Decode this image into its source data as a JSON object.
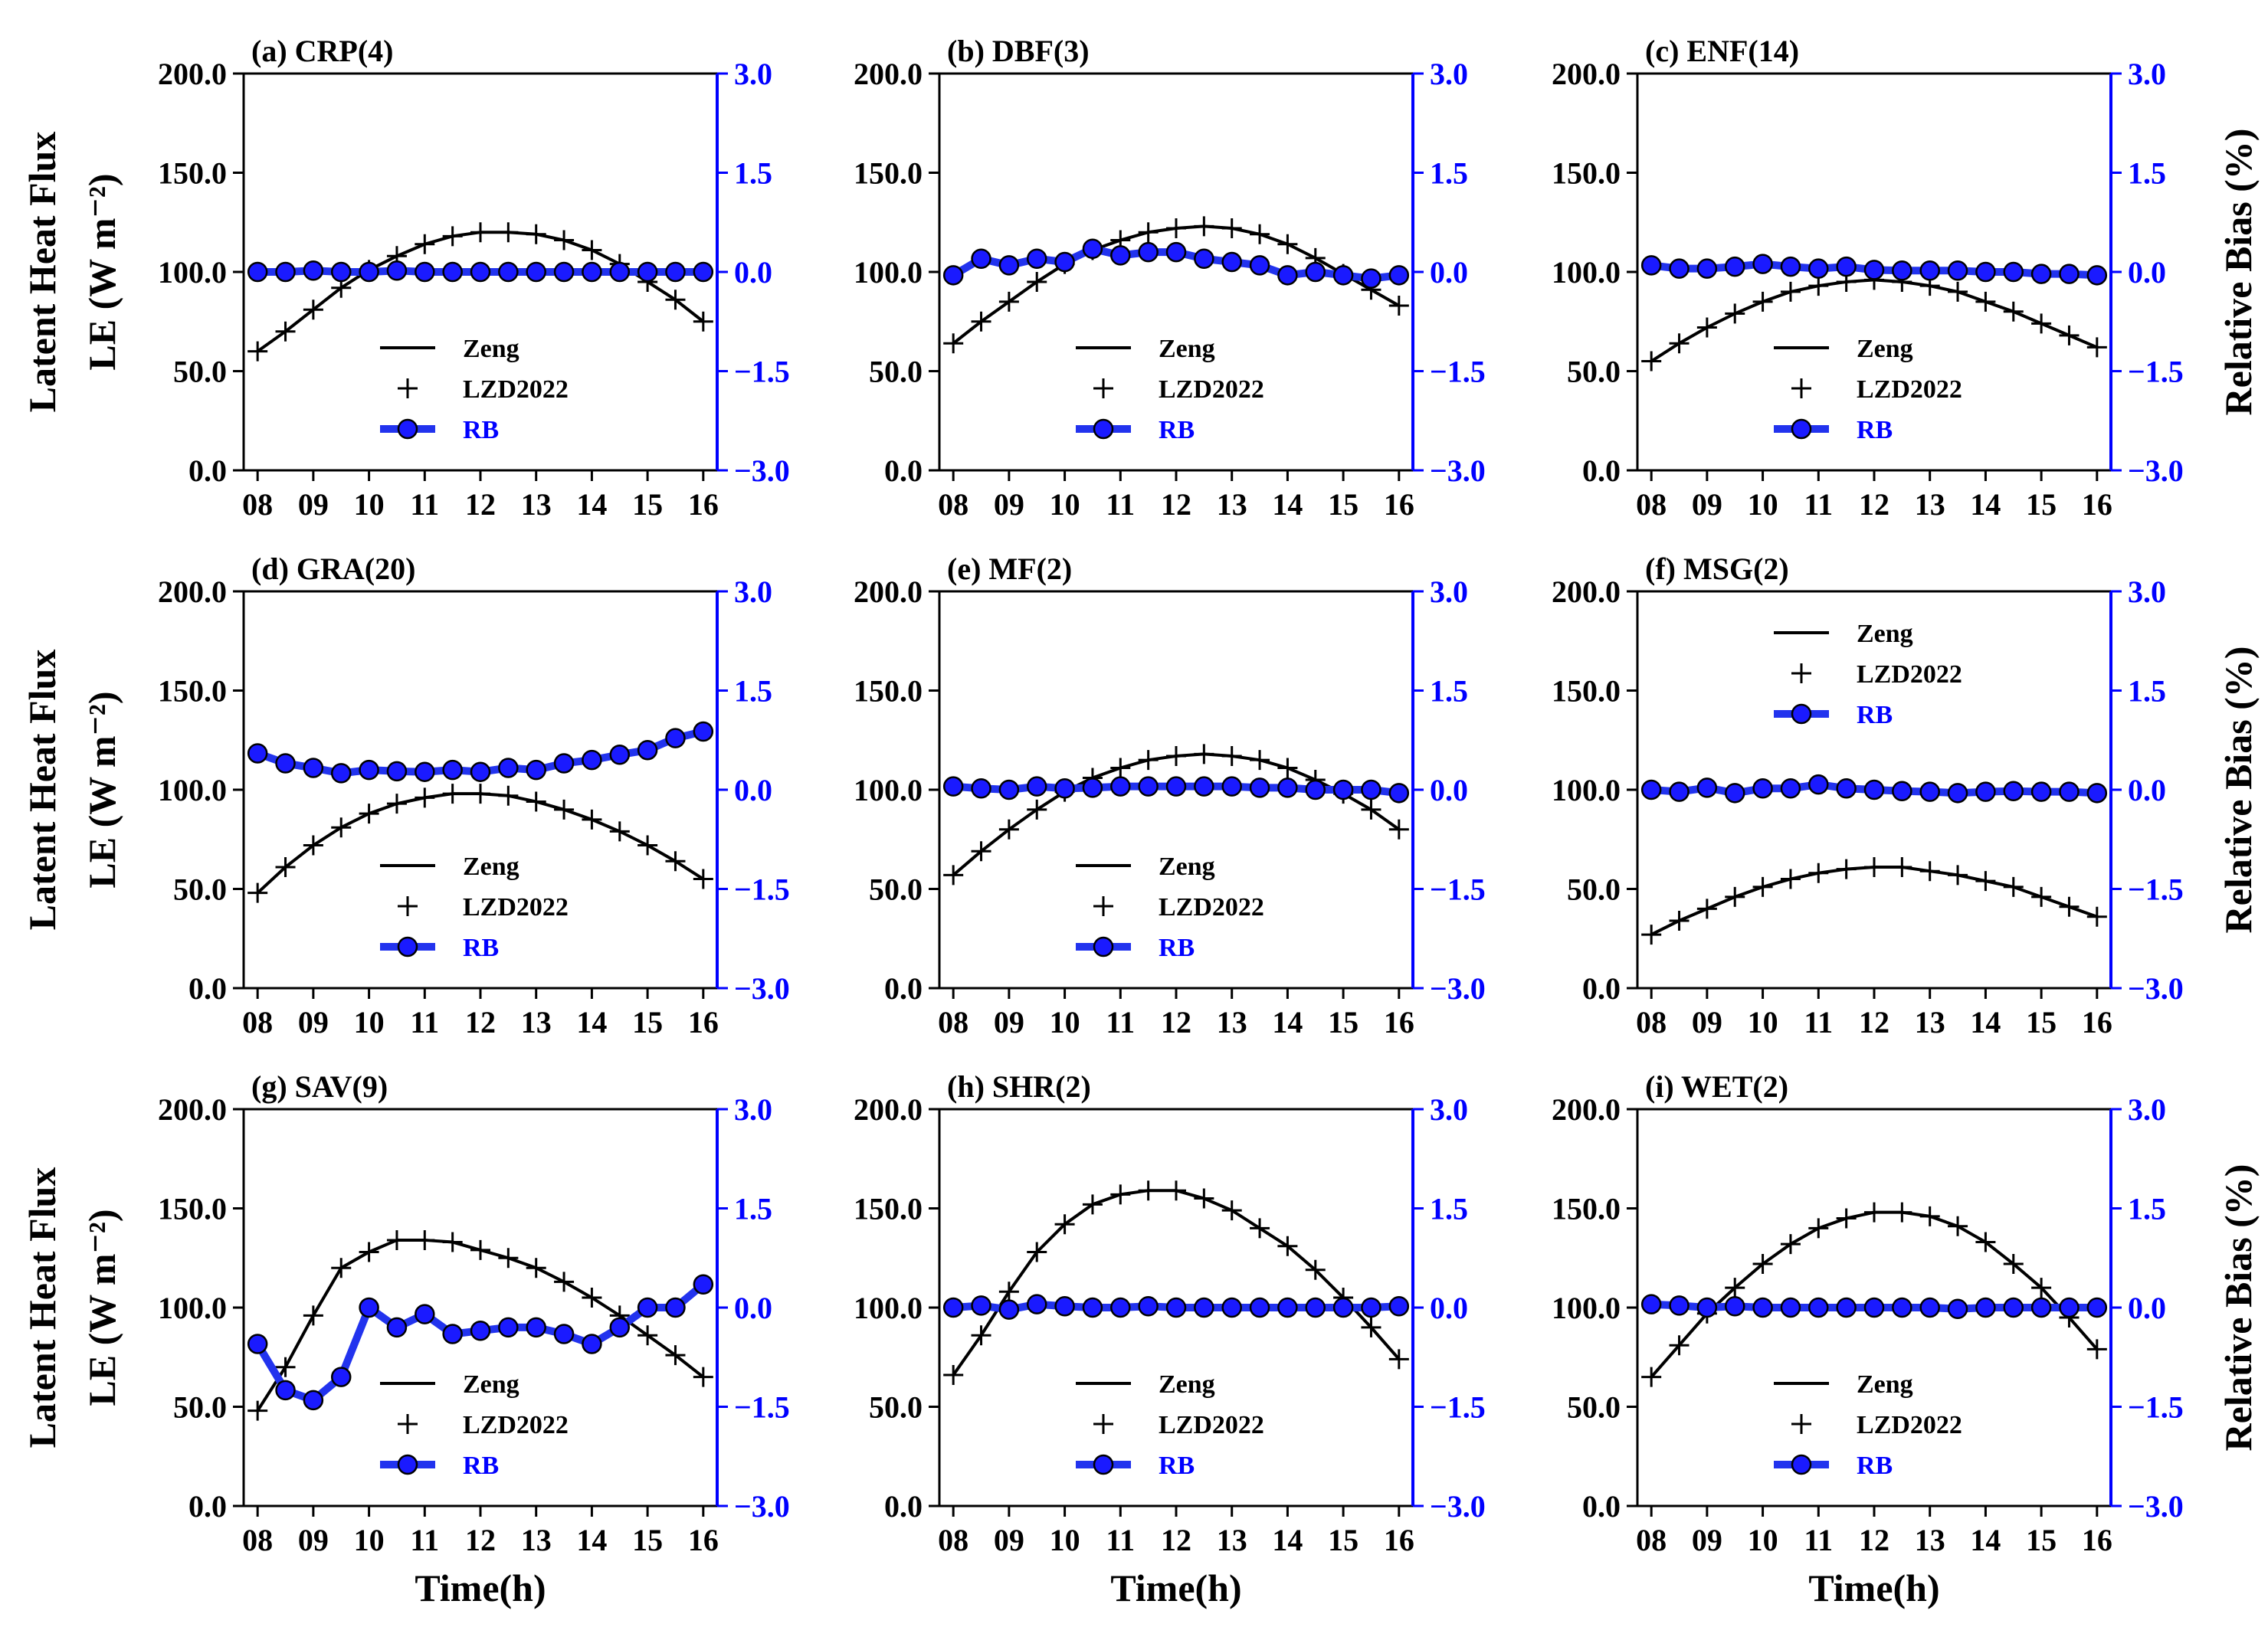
{
  "figure": {
    "xlabel": "Time(h)",
    "left_ylabel_line1": "Latent Heat Flux",
    "left_ylabel_line2": "LE (W m⁻²)",
    "right_ylabel": "Relative Bias (%)",
    "x_ticks": [
      "08",
      "09",
      "10",
      "11",
      "12",
      "13",
      "14",
      "15",
      "16"
    ],
    "y_ticks": [
      "0.0",
      "50.0",
      "100.0",
      "150.0",
      "200.0"
    ],
    "y2_ticks": [
      "−3.0",
      "−1.5",
      "0.0",
      "1.5",
      "3.0"
    ],
    "colors": {
      "line": "#000000",
      "rb": "#2233ee",
      "rb_marker": "#1a1aff",
      "right_axis": "#0000ff"
    }
  },
  "chart_data": [
    {
      "type": "line",
      "title": "(a) CRP(4)",
      "x": [
        8.0,
        8.5,
        9.0,
        9.5,
        10.0,
        10.5,
        11.0,
        11.5,
        12.0,
        12.5,
        13.0,
        13.5,
        14.0,
        14.5,
        15.0,
        15.5,
        16.0
      ],
      "xlim": [
        7.75,
        16.25
      ],
      "ylim": [
        0,
        200
      ],
      "y2lim": [
        -3,
        3
      ],
      "legend": {
        "position": "lower-center",
        "entries": [
          "Zeng",
          "LZD2022",
          "RB"
        ]
      },
      "series": [
        {
          "name": "Zeng",
          "axis": "left",
          "marker": "none",
          "values": [
            60,
            70,
            81,
            92,
            101,
            108,
            114,
            118,
            120,
            120,
            119,
            116,
            111,
            104,
            95,
            86,
            75
          ]
        },
        {
          "name": "LZD2022",
          "axis": "left",
          "marker": "plus",
          "values": [
            60,
            70,
            81,
            92,
            101,
            108,
            114,
            118,
            120,
            120,
            119,
            116,
            111,
            104,
            95,
            86,
            75
          ]
        },
        {
          "name": "RB",
          "axis": "right",
          "marker": "circle",
          "values": [
            0.0,
            0.0,
            0.02,
            0.0,
            0.0,
            0.02,
            0.0,
            0.0,
            0.0,
            0.0,
            0.0,
            0.0,
            0.0,
            0.0,
            0.0,
            0.0,
            0.0
          ]
        }
      ]
    },
    {
      "type": "line",
      "title": "(b) DBF(3)",
      "x": [
        8.0,
        8.5,
        9.0,
        9.5,
        10.0,
        10.5,
        11.0,
        11.5,
        12.0,
        12.5,
        13.0,
        13.5,
        14.0,
        14.5,
        15.0,
        15.5,
        16.0
      ],
      "xlim": [
        7.75,
        16.25
      ],
      "ylim": [
        0,
        200
      ],
      "y2lim": [
        -3,
        3
      ],
      "legend": {
        "position": "lower-center",
        "entries": [
          "Zeng",
          "LZD2022",
          "RB"
        ]
      },
      "series": [
        {
          "name": "Zeng",
          "axis": "left",
          "marker": "none",
          "values": [
            64,
            75,
            85,
            95,
            104,
            111,
            116,
            120,
            122,
            123,
            122,
            119,
            114,
            107,
            99,
            91,
            83
          ]
        },
        {
          "name": "LZD2022",
          "axis": "left",
          "marker": "plus",
          "values": [
            64,
            75,
            85,
            95,
            104,
            111,
            116,
            120,
            122,
            123,
            122,
            119,
            114,
            107,
            99,
            91,
            83
          ]
        },
        {
          "name": "RB",
          "axis": "right",
          "marker": "circle",
          "values": [
            -0.05,
            0.2,
            0.1,
            0.2,
            0.15,
            0.35,
            0.25,
            0.3,
            0.3,
            0.2,
            0.15,
            0.1,
            -0.05,
            0.0,
            -0.05,
            -0.1,
            -0.05
          ]
        }
      ]
    },
    {
      "type": "line",
      "title": "(c) ENF(14)",
      "x": [
        8.0,
        8.5,
        9.0,
        9.5,
        10.0,
        10.5,
        11.0,
        11.5,
        12.0,
        12.5,
        13.0,
        13.5,
        14.0,
        14.5,
        15.0,
        15.5,
        16.0
      ],
      "xlim": [
        7.75,
        16.25
      ],
      "ylim": [
        0,
        200
      ],
      "y2lim": [
        -3,
        3
      ],
      "legend": {
        "position": "lower-center",
        "entries": [
          "Zeng",
          "LZD2022",
          "RB"
        ]
      },
      "series": [
        {
          "name": "Zeng",
          "axis": "left",
          "marker": "none",
          "values": [
            55,
            64,
            72,
            79,
            85,
            90,
            93,
            95,
            96,
            95,
            93,
            90,
            85,
            80,
            74,
            68,
            62
          ]
        },
        {
          "name": "LZD2022",
          "axis": "left",
          "marker": "plus",
          "values": [
            55,
            64,
            72,
            79,
            85,
            90,
            93,
            95,
            96,
            95,
            93,
            90,
            85,
            80,
            74,
            68,
            62
          ]
        },
        {
          "name": "RB",
          "axis": "right",
          "marker": "circle",
          "values": [
            0.1,
            0.05,
            0.05,
            0.08,
            0.12,
            0.08,
            0.05,
            0.08,
            0.03,
            0.02,
            0.02,
            0.02,
            0.0,
            0.0,
            -0.03,
            -0.03,
            -0.05
          ]
        }
      ]
    },
    {
      "type": "line",
      "title": "(d) GRA(20)",
      "x": [
        8.0,
        8.5,
        9.0,
        9.5,
        10.0,
        10.5,
        11.0,
        11.5,
        12.0,
        12.5,
        13.0,
        13.5,
        14.0,
        14.5,
        15.0,
        15.5,
        16.0
      ],
      "xlim": [
        7.75,
        16.25
      ],
      "ylim": [
        0,
        200
      ],
      "y2lim": [
        -3,
        3
      ],
      "legend": {
        "position": "lower-center",
        "entries": [
          "Zeng",
          "LZD2022",
          "RB"
        ]
      },
      "series": [
        {
          "name": "Zeng",
          "axis": "left",
          "marker": "none",
          "values": [
            48,
            61,
            72,
            81,
            88,
            93,
            96,
            98,
            98,
            97,
            94,
            90,
            85,
            79,
            72,
            64,
            55
          ]
        },
        {
          "name": "LZD2022",
          "axis": "left",
          "marker": "plus",
          "values": [
            48,
            61,
            72,
            81,
            88,
            93,
            96,
            98,
            98,
            97,
            94,
            90,
            85,
            79,
            72,
            64,
            55
          ]
        },
        {
          "name": "RB",
          "axis": "right",
          "marker": "circle",
          "values": [
            0.55,
            0.4,
            0.33,
            0.25,
            0.3,
            0.28,
            0.27,
            0.3,
            0.27,
            0.33,
            0.3,
            0.4,
            0.45,
            0.53,
            0.6,
            0.78,
            0.88
          ]
        }
      ]
    },
    {
      "type": "line",
      "title": "(e) MF(2)",
      "x": [
        8.0,
        8.5,
        9.0,
        9.5,
        10.0,
        10.5,
        11.0,
        11.5,
        12.0,
        12.5,
        13.0,
        13.5,
        14.0,
        14.5,
        15.0,
        15.5,
        16.0
      ],
      "xlim": [
        7.75,
        16.25
      ],
      "ylim": [
        0,
        200
      ],
      "y2lim": [
        -3,
        3
      ],
      "legend": {
        "position": "lower-center",
        "entries": [
          "Zeng",
          "LZD2022",
          "RB"
        ]
      },
      "series": [
        {
          "name": "Zeng",
          "axis": "left",
          "marker": "none",
          "values": [
            57,
            69,
            80,
            90,
            99,
            106,
            111,
            115,
            117,
            118,
            117,
            115,
            111,
            105,
            98,
            90,
            80
          ]
        },
        {
          "name": "LZD2022",
          "axis": "left",
          "marker": "plus",
          "values": [
            57,
            69,
            80,
            90,
            99,
            106,
            111,
            115,
            117,
            118,
            117,
            115,
            111,
            105,
            98,
            90,
            80
          ]
        },
        {
          "name": "RB",
          "axis": "right",
          "marker": "circle",
          "values": [
            0.05,
            0.02,
            0.0,
            0.05,
            0.02,
            0.03,
            0.05,
            0.05,
            0.05,
            0.05,
            0.05,
            0.03,
            0.03,
            0.0,
            0.0,
            0.0,
            -0.05
          ]
        }
      ]
    },
    {
      "type": "line",
      "title": "(f) MSG(2)",
      "x": [
        8.0,
        8.5,
        9.0,
        9.5,
        10.0,
        10.5,
        11.0,
        11.5,
        12.0,
        12.5,
        13.0,
        13.5,
        14.0,
        14.5,
        15.0,
        15.5,
        16.0
      ],
      "xlim": [
        7.75,
        16.25
      ],
      "ylim": [
        0,
        200
      ],
      "y2lim": [
        -3,
        3
      ],
      "legend": {
        "position": "upper-center",
        "entries": [
          "Zeng",
          "LZD2022",
          "RB"
        ]
      },
      "series": [
        {
          "name": "Zeng",
          "axis": "left",
          "marker": "none",
          "values": [
            27,
            34,
            40,
            46,
            51,
            55,
            58,
            60,
            61,
            61,
            59,
            57,
            54,
            51,
            46,
            41,
            36
          ]
        },
        {
          "name": "LZD2022",
          "axis": "left",
          "marker": "plus",
          "values": [
            27,
            34,
            40,
            46,
            51,
            55,
            58,
            60,
            61,
            61,
            59,
            57,
            54,
            51,
            46,
            41,
            36
          ]
        },
        {
          "name": "RB",
          "axis": "right",
          "marker": "circle",
          "values": [
            0.0,
            -0.03,
            0.03,
            -0.05,
            0.02,
            0.02,
            0.08,
            0.02,
            0.0,
            -0.02,
            -0.03,
            -0.05,
            -0.03,
            -0.02,
            -0.03,
            -0.03,
            -0.05
          ]
        }
      ]
    },
    {
      "type": "line",
      "title": "(g) SAV(9)",
      "x": [
        8.0,
        8.5,
        9.0,
        9.5,
        10.0,
        10.5,
        11.0,
        11.5,
        12.0,
        12.5,
        13.0,
        13.5,
        14.0,
        14.5,
        15.0,
        15.5,
        16.0
      ],
      "xlim": [
        7.75,
        16.25
      ],
      "ylim": [
        0,
        200
      ],
      "y2lim": [
        -3,
        3
      ],
      "legend": {
        "position": "lower-center",
        "entries": [
          "Zeng",
          "LZD2022",
          "RB"
        ]
      },
      "series": [
        {
          "name": "Zeng",
          "axis": "left",
          "marker": "none",
          "values": [
            48,
            70,
            96,
            120,
            128,
            134,
            134,
            133,
            129,
            125,
            120,
            113,
            105,
            96,
            86,
            76,
            65
          ]
        },
        {
          "name": "LZD2022",
          "axis": "left",
          "marker": "plus",
          "values": [
            48,
            70,
            96,
            120,
            128,
            134,
            134,
            133,
            129,
            125,
            120,
            113,
            105,
            96,
            86,
            76,
            65
          ]
        },
        {
          "name": "RB",
          "axis": "right",
          "marker": "circle",
          "values": [
            -0.55,
            -1.25,
            -1.4,
            -1.05,
            0.0,
            -0.3,
            -0.1,
            -0.4,
            -0.35,
            -0.3,
            -0.3,
            -0.4,
            -0.55,
            -0.3,
            0.0,
            0.0,
            0.35
          ]
        }
      ]
    },
    {
      "type": "line",
      "title": "(h) SHR(2)",
      "x": [
        8.0,
        8.5,
        9.0,
        9.5,
        10.0,
        10.5,
        11.0,
        11.5,
        12.0,
        12.5,
        13.0,
        13.5,
        14.0,
        14.5,
        15.0,
        15.5,
        16.0
      ],
      "xlim": [
        7.75,
        16.25
      ],
      "ylim": [
        0,
        200
      ],
      "y2lim": [
        -3,
        3
      ],
      "legend": {
        "position": "lower-center",
        "entries": [
          "Zeng",
          "LZD2022",
          "RB"
        ]
      },
      "series": [
        {
          "name": "Zeng",
          "axis": "left",
          "marker": "none",
          "values": [
            66,
            86,
            108,
            128,
            142,
            152,
            157,
            159,
            159,
            155,
            149,
            140,
            131,
            119,
            105,
            90,
            74
          ]
        },
        {
          "name": "LZD2022",
          "axis": "left",
          "marker": "plus",
          "values": [
            66,
            86,
            108,
            128,
            142,
            152,
            157,
            159,
            159,
            155,
            149,
            140,
            131,
            119,
            105,
            90,
            74
          ]
        },
        {
          "name": "RB",
          "axis": "right",
          "marker": "circle",
          "values": [
            0.0,
            0.03,
            -0.03,
            0.05,
            0.02,
            0.0,
            0.0,
            0.02,
            0.0,
            0.0,
            0.0,
            0.0,
            0.0,
            0.0,
            0.0,
            0.0,
            0.02
          ]
        }
      ]
    },
    {
      "type": "line",
      "title": "(i) WET(2)",
      "x": [
        8.0,
        8.5,
        9.0,
        9.5,
        10.0,
        10.5,
        11.0,
        11.5,
        12.0,
        12.5,
        13.0,
        13.5,
        14.0,
        14.5,
        15.0,
        15.5,
        16.0
      ],
      "xlim": [
        7.75,
        16.25
      ],
      "ylim": [
        0,
        200
      ],
      "y2lim": [
        -3,
        3
      ],
      "legend": {
        "position": "lower-center",
        "entries": [
          "Zeng",
          "LZD2022",
          "RB"
        ]
      },
      "series": [
        {
          "name": "Zeng",
          "axis": "left",
          "marker": "none",
          "values": [
            65,
            81,
            97,
            110,
            122,
            132,
            140,
            145,
            148,
            148,
            146,
            141,
            133,
            122,
            110,
            95,
            79
          ]
        },
        {
          "name": "LZD2022",
          "axis": "left",
          "marker": "plus",
          "values": [
            65,
            81,
            97,
            110,
            122,
            132,
            140,
            145,
            148,
            148,
            146,
            141,
            133,
            122,
            110,
            95,
            79
          ]
        },
        {
          "name": "RB",
          "axis": "right",
          "marker": "circle",
          "values": [
            0.05,
            0.03,
            0.0,
            0.02,
            0.0,
            0.0,
            0.0,
            0.0,
            0.0,
            0.0,
            0.0,
            -0.02,
            0.0,
            0.0,
            0.0,
            0.0,
            0.0
          ]
        }
      ]
    }
  ]
}
